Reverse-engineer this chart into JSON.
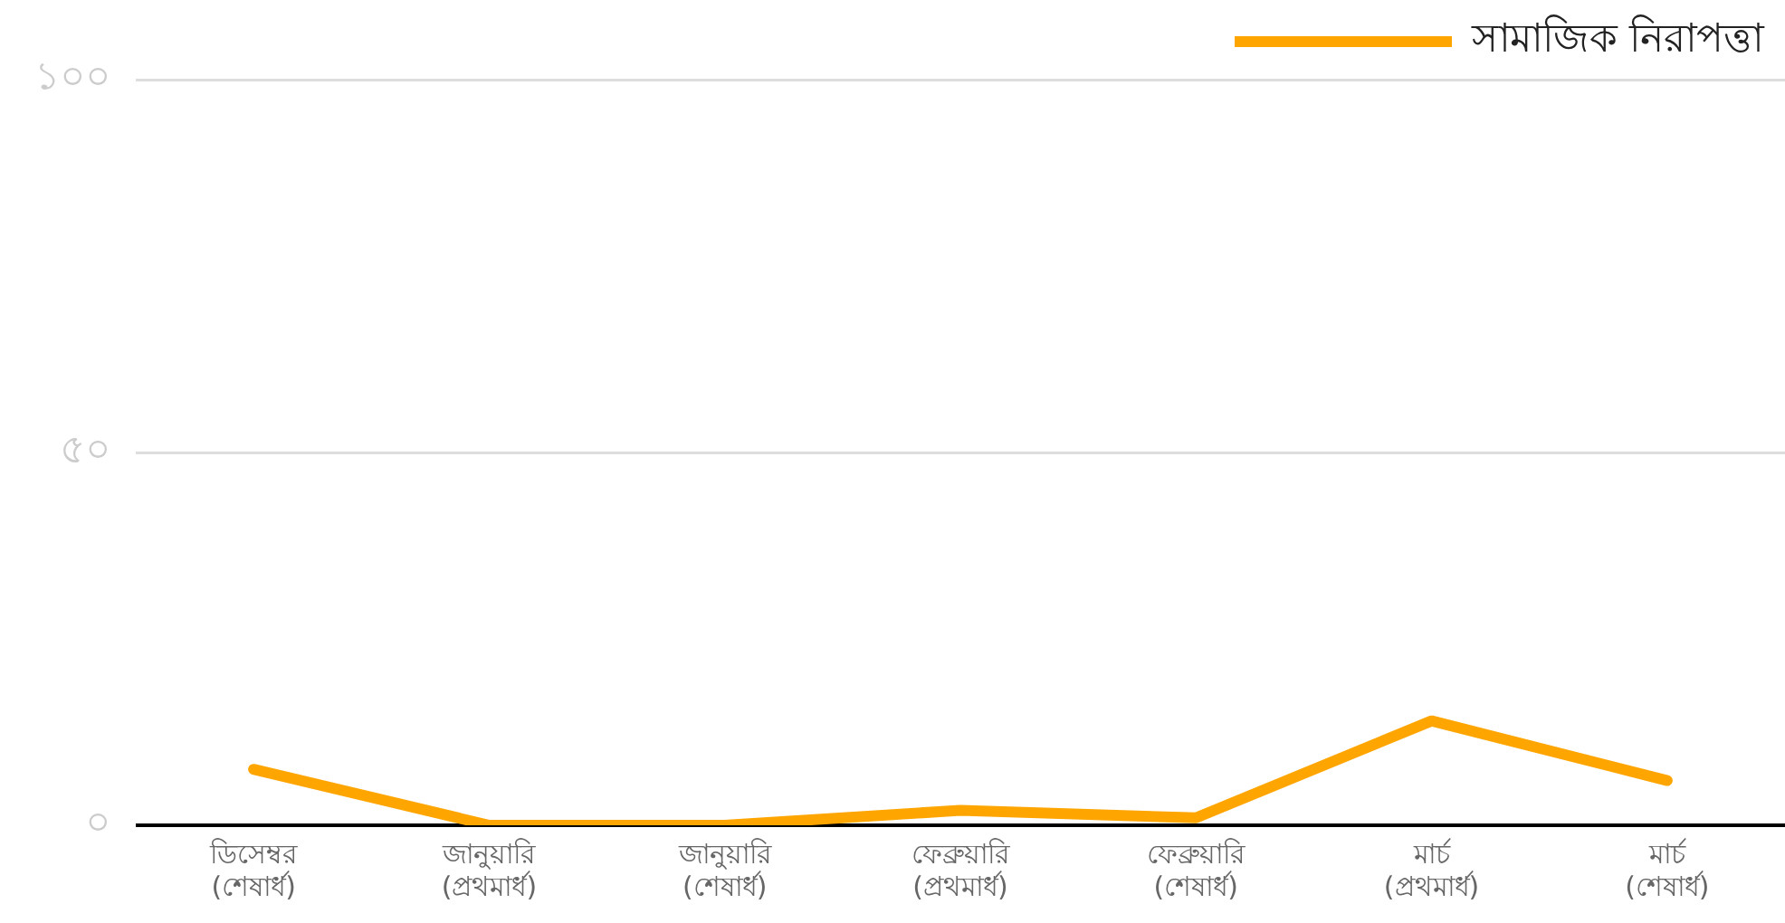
{
  "chart_data": {
    "type": "line",
    "categories": [
      "ডিসেম্বর\n(শেষার্ধ)",
      "জানুয়ারি\n(প্রথমার্ধ)",
      "জানুয়ারি\n(শেষার্ধ)",
      "ফেব্রুয়ারি\n(প্রথমার্ধ)",
      "ফেব্রুয়ারি\n(শেষার্ধ)",
      "মার্চ\n(প্রথমার্ধ)",
      "মার্চ\n(শেষার্ধ)"
    ],
    "series": [
      {
        "name": "সামাজিক নিরাপত্তা",
        "color": "#ffa500",
        "values": [
          7.5,
          0,
          0,
          2,
          1,
          14,
          6
        ]
      }
    ],
    "ylim": [
      0,
      100
    ],
    "yticks": [
      {
        "value": 0,
        "label": "০"
      },
      {
        "value": 50,
        "label": "৫০"
      },
      {
        "value": 100,
        "label": "১০০"
      }
    ],
    "grid": "y",
    "legend": "top right",
    "marker": "none",
    "line_style": "solid"
  }
}
